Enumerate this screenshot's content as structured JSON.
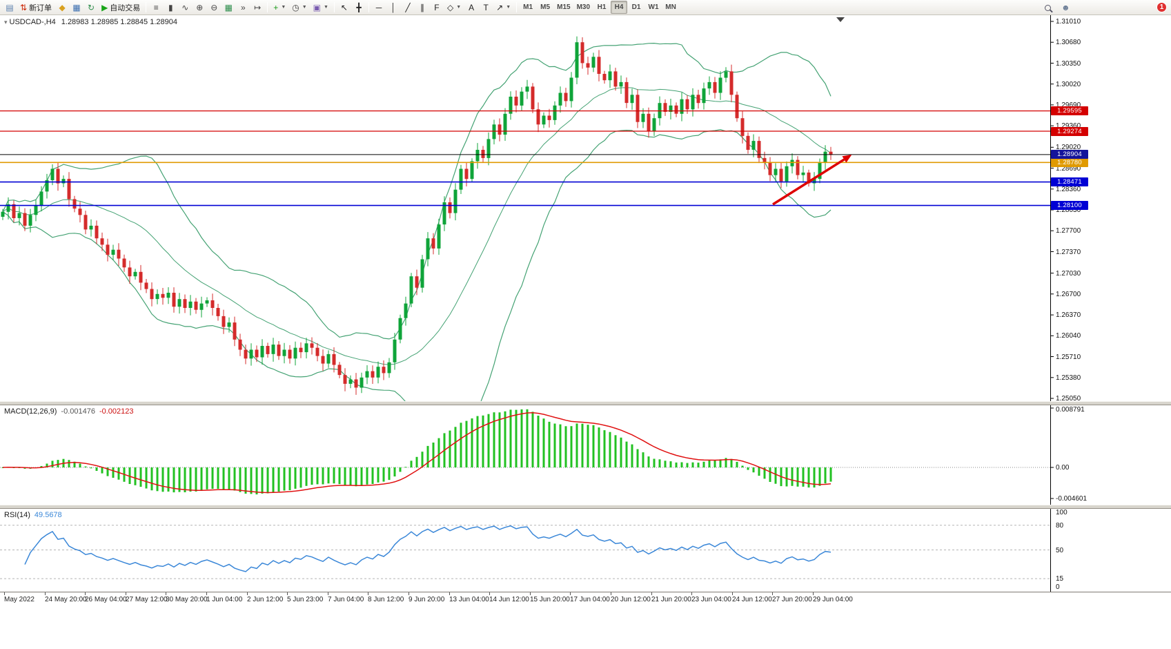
{
  "toolbar": {
    "notification_count": "1",
    "timeframes": [
      "M1",
      "M5",
      "M15",
      "M30",
      "H1",
      "H4",
      "D1",
      "W1",
      "MN"
    ],
    "active_timeframe": "H4",
    "items": [
      {
        "name": "new-chart-button",
        "glyph": "▤",
        "color": "#5a7fae"
      },
      {
        "name": "new-order-button",
        "glyph": "⇅",
        "color": "#cc2200",
        "label": "新订单"
      },
      {
        "name": "metaeditor-button",
        "glyph": "◆",
        "color": "#d9a120"
      },
      {
        "name": "market-watch-button",
        "glyph": "▦",
        "color": "#3c6fb0"
      },
      {
        "name": "refresh-button",
        "glyph": "↻",
        "color": "#2f8f4e"
      },
      {
        "name": "auto-trading-button",
        "glyph": "▶",
        "color": "#19a519",
        "label": "自动交易"
      },
      {
        "sep": true
      },
      {
        "name": "chart-bars-button",
        "glyph": "≡",
        "color": "#444"
      },
      {
        "name": "chart-candles-button",
        "glyph": "▮",
        "color": "#444"
      },
      {
        "name": "chart-line-button",
        "glyph": "∿",
        "color": "#444"
      },
      {
        "name": "zoom-in-button",
        "glyph": "⊕",
        "color": "#444"
      },
      {
        "name": "zoom-out-button",
        "glyph": "⊖",
        "color": "#444"
      },
      {
        "name": "tile-windows-button",
        "glyph": "▦",
        "color": "#2f8f4e"
      },
      {
        "name": "auto-scroll-button",
        "glyph": "»",
        "color": "#444"
      },
      {
        "name": "chart-shift-button",
        "glyph": "↦",
        "color": "#444"
      },
      {
        "sep": true
      },
      {
        "name": "indicators-button",
        "glyph": "+",
        "color": "#1a9a1a",
        "caret": true
      },
      {
        "name": "periods-button",
        "glyph": "◷",
        "color": "#444",
        "caret": true
      },
      {
        "name": "templates-button",
        "glyph": "▣",
        "color": "#7a5cb0",
        "caret": true
      },
      {
        "sep": true
      },
      {
        "name": "cursor-button",
        "glyph": "↖",
        "color": "#222"
      },
      {
        "name": "crosshair-button",
        "glyph": "╋",
        "color": "#222"
      },
      {
        "sep": true
      },
      {
        "name": "horizontal-line-button",
        "glyph": "─",
        "color": "#222"
      },
      {
        "name": "vertical-line-button",
        "glyph": "│",
        "color": "#222"
      },
      {
        "name": "trendline-button",
        "glyph": "╱",
        "color": "#222"
      },
      {
        "name": "channel-button",
        "glyph": "∥",
        "color": "#222"
      },
      {
        "name": "fibonacci-button",
        "glyph": "F",
        "color": "#222"
      },
      {
        "name": "shapes-button",
        "glyph": "◇",
        "color": "#222",
        "caret": true
      },
      {
        "name": "text-button",
        "glyph": "A",
        "color": "#222"
      },
      {
        "name": "text-label-button",
        "glyph": "T",
        "color": "#222"
      },
      {
        "name": "arrows-button",
        "glyph": "↗",
        "color": "#222",
        "caret": true
      },
      {
        "sep": true
      }
    ]
  },
  "chart": {
    "symbol_label": "USDCAD-,H4",
    "ohlc_text": "1.28983 1.28985 1.28845 1.28904"
  },
  "chart_data": {
    "type": "candlestick",
    "symbol": "USDCAD",
    "timeframe": "H4",
    "price_range": [
      1.2505,
      1.3101
    ],
    "price_axis_labels": [
      "1.31010",
      "1.30680",
      "1.30350",
      "1.30020",
      "1.29690",
      "1.29360",
      "1.29020",
      "1.28690",
      "1.28360",
      "1.28030",
      "1.27700",
      "1.27370",
      "1.27030",
      "1.26700",
      "1.26370",
      "1.26040",
      "1.25710",
      "1.25380",
      "1.25050"
    ],
    "time_labels": [
      "May 2022",
      "24 May 20:00",
      "26 May 04:00",
      "27 May 12:00",
      "30 May 20:00",
      "1 Jun 04:00",
      "2 Jun 12:00",
      "5 Jun 23:00",
      "7 Jun 04:00",
      "8 Jun 12:00",
      "9 Jun 20:00",
      "13 Jun 04:00",
      "14 Jun 12:00",
      "15 Jun 20:00",
      "17 Jun 04:00",
      "20 Jun 12:00",
      "21 Jun 20:00",
      "23 Jun 04:00",
      "24 Jun 12:00",
      "27 Jun 20:00",
      "29 Jun 04:00"
    ],
    "candles_close": [
      1.28,
      1.2812,
      1.279,
      1.2798,
      1.2778,
      1.2795,
      1.281,
      1.2832,
      1.285,
      1.2868,
      1.2845,
      1.2852,
      1.282,
      1.2805,
      1.2795,
      1.2772,
      1.2778,
      1.2758,
      1.2748,
      1.2732,
      1.274,
      1.2726,
      1.2712,
      1.2698,
      1.2705,
      1.2688,
      1.2678,
      1.2662,
      1.267,
      1.2664,
      1.2672,
      1.265,
      1.2662,
      1.2648,
      1.2658,
      1.2645,
      1.2655,
      1.266,
      1.2648,
      1.2635,
      1.2618,
      1.2625,
      1.2598,
      1.2582,
      1.2568,
      1.2582,
      1.257,
      1.2588,
      1.2575,
      1.259,
      1.2572,
      1.2582,
      1.2568,
      1.2585,
      1.2578,
      1.2592,
      1.2585,
      1.2572,
      1.256,
      1.2575,
      1.2558,
      1.2542,
      1.2528,
      1.2535,
      1.2522,
      1.2538,
      1.2548,
      1.2538,
      1.2555,
      1.2545,
      1.2562,
      1.2598,
      1.2632,
      1.2655,
      1.2698,
      1.268,
      1.2725,
      1.2758,
      1.2742,
      1.278,
      1.2815,
      1.2798,
      1.2835,
      1.2868,
      1.2852,
      1.288,
      1.2898,
      1.2885,
      1.2915,
      1.2938,
      1.2922,
      1.2955,
      1.2982,
      1.2968,
      1.299,
      1.2998,
      1.2962,
      1.2938,
      1.2952,
      1.2945,
      1.2968,
      1.2988,
      1.2975,
      1.3012,
      1.3068,
      1.3035,
      1.3028,
      1.3045,
      1.3018,
      1.3008,
      1.3022,
      1.2998,
      1.3005,
      1.2972,
      1.2985,
      1.2942,
      1.2955,
      1.2928,
      1.2948,
      1.2972,
      1.2958,
      1.2968,
      1.2955,
      1.2978,
      1.2962,
      1.2985,
      1.2972,
      1.2995,
      1.3005,
      1.2988,
      1.3012,
      1.3022,
      1.2985,
      1.2948,
      1.292,
      1.2898,
      1.2912,
      1.2885,
      1.2878,
      1.2858,
      1.2868,
      1.2848,
      1.2872,
      1.2882,
      1.2858,
      1.2862,
      1.2845,
      1.2852,
      1.2878,
      1.2895,
      1.28904
    ],
    "hlines": [
      {
        "price": 1.29595,
        "label": "1.29595",
        "color": "#d40000"
      },
      {
        "price": 1.29274,
        "label": "1.29274",
        "color": "#d40000"
      },
      {
        "price": 1.2878,
        "label": "1.28780",
        "color": "#e09a00",
        "width": 1.6
      },
      {
        "price": 1.28471,
        "label": "1.28471",
        "color": "#0000d4",
        "width": 1.6
      },
      {
        "price": 1.281,
        "label": "1.28100",
        "color": "#0000d4",
        "width": 1.6
      },
      {
        "price": 1.28904,
        "label": "1.28904",
        "color": "#14149b",
        "line_color": "#000000",
        "width": 1
      }
    ],
    "overlays": {
      "bollinger": {
        "period": 20,
        "deviation": 2
      }
    },
    "macd": {
      "name": "MACD(12,26,9)",
      "value_main": "-0.001476",
      "value_signal": "-0.002123",
      "fast": 12,
      "slow": 26,
      "signal": 9,
      "axis_labels": [
        "0.008791",
        "0.00",
        "-0.004601"
      ],
      "axis_max": 0.008791,
      "axis_min": -0.004601
    },
    "rsi": {
      "name": "RSI(14)",
      "value": "49.5678",
      "period": 14,
      "levels": [
        80,
        50,
        15
      ],
      "axis_labels": [
        "100",
        "80",
        "50",
        "15",
        "0"
      ]
    },
    "annotation_arrow": {
      "from_index": 139.5,
      "from_price": 1.28117,
      "to_index": 153.8,
      "to_price": 1.28903
    },
    "colors": {
      "up": "#0fa439",
      "down": "#d42b2b",
      "bollinger": "#44a273",
      "macd_hist": "#22c122",
      "macd_signal": "#e01010",
      "rsi_line": "#3a87d8",
      "arrow": "#dd0000",
      "level_dash": "#b3b3b3"
    }
  }
}
